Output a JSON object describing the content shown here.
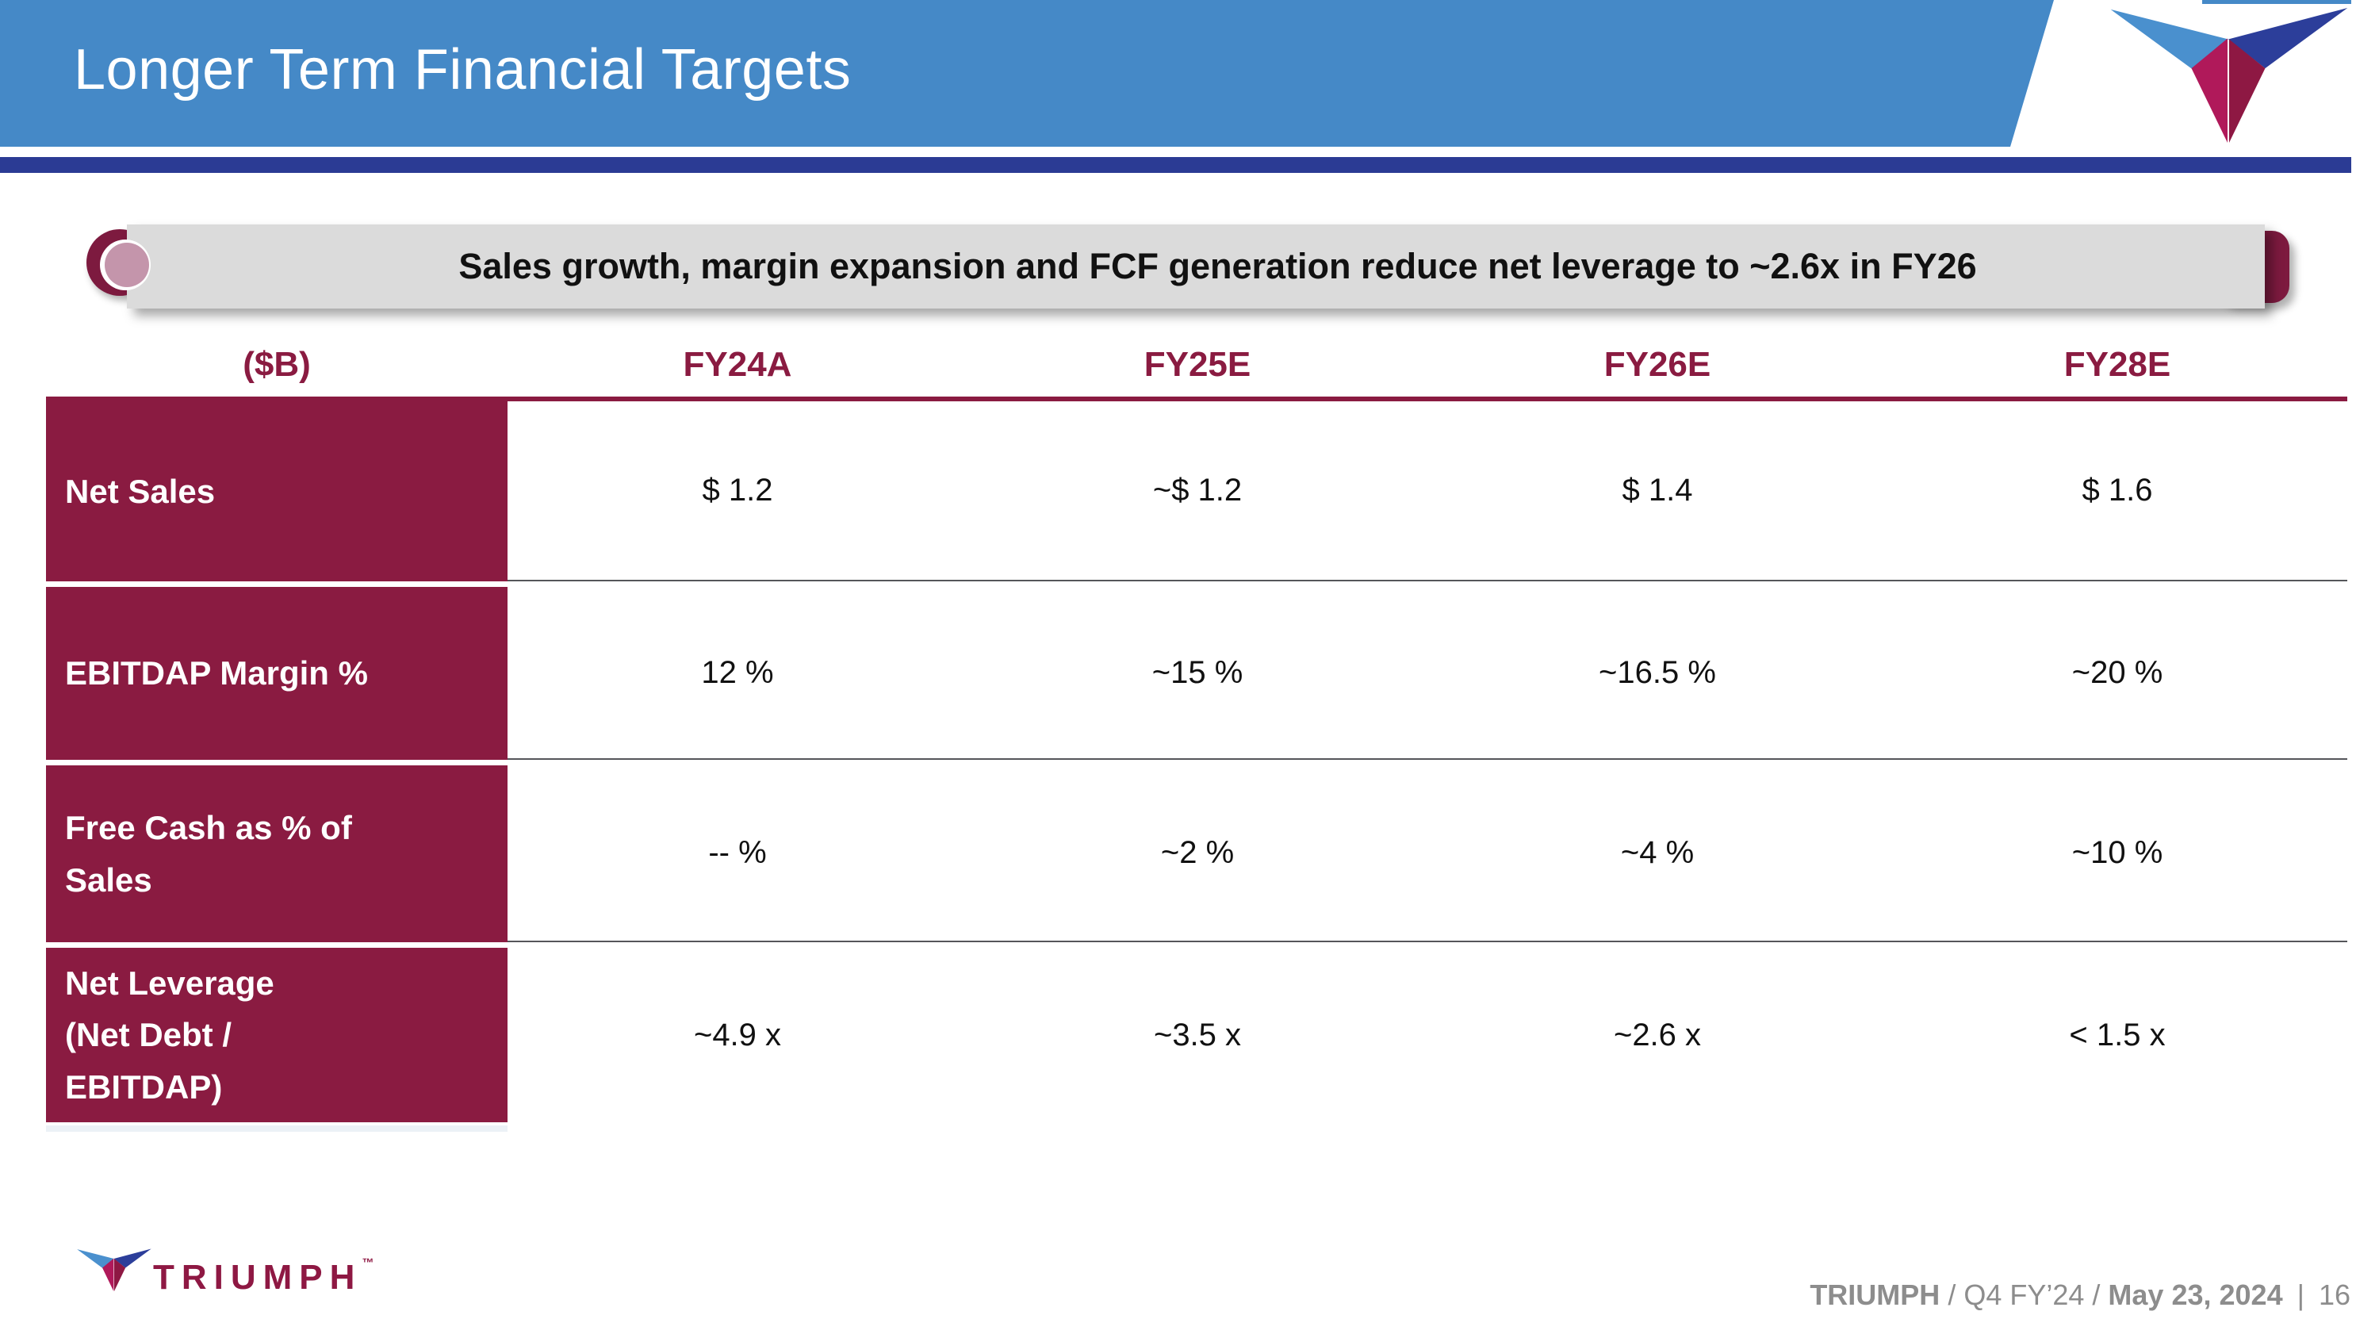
{
  "header": {
    "title": "Longer Term Financial Targets"
  },
  "banner": {
    "text": "Sales growth, margin expansion and FCF generation reduce net leverage to ~2.6x in FY26"
  },
  "table": {
    "unit_header": "($B)",
    "year_columns": [
      "FY24A",
      "FY25E",
      "FY26E",
      "FY28E"
    ],
    "rows": [
      {
        "label_lines": [
          "Net Sales"
        ],
        "values": [
          "$ 1.2",
          "~$ 1.2",
          "$ 1.4",
          "$ 1.6"
        ]
      },
      {
        "label_lines": [
          "EBITDAP Margin %"
        ],
        "values": [
          "12 %",
          "~15 %",
          "~16.5 %",
          "~20 %"
        ]
      },
      {
        "label_lines": [
          "Free Cash as % of",
          "Sales"
        ],
        "values": [
          "-- %",
          "~2 %",
          "~4 %",
          "~10 %"
        ]
      },
      {
        "label_lines": [
          "Net Leverage",
          "(Net Debt /",
          "EBITDAP)"
        ],
        "values": [
          "~4.9 x",
          "~3.5 x",
          "~2.6 x",
          "< 1.5 x"
        ]
      }
    ]
  },
  "footer": {
    "brand_name": "TRIUMPH",
    "trademark": "™",
    "meta_brand": "TRIUMPH",
    "meta_sep1": " / ",
    "meta_quarter": "Q4 FY’24",
    "meta_sep2": " / ",
    "meta_date": "May 23, 2024",
    "meta_divider": "|",
    "meta_page": "16"
  },
  "colors": {
    "header_blue": "#4589C7",
    "rule_blue": "#2B3B94",
    "brand_maroon": "#8A1B41",
    "scroll_maroon": "#7D1A3F",
    "scroll_gray": "#DBDBDB",
    "scroll_pink": "#C495AB",
    "separator_gray": "#55565A",
    "footer_text_gray": "#8D8D8D",
    "logo_light_blue": "#4A90CE",
    "logo_dark_blue": "#2C3E9A",
    "logo_magenta": "#B0195A",
    "logo_dark_maroon": "#8E1843"
  }
}
